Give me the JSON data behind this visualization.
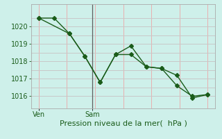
{
  "line1_x": [
    0,
    1,
    2,
    3,
    4,
    5,
    6,
    7,
    8,
    9,
    10,
    11
  ],
  "line1_y": [
    1020.5,
    1020.5,
    1019.6,
    1018.3,
    1016.8,
    1018.4,
    1018.9,
    1017.7,
    1017.6,
    1017.2,
    1015.9,
    1016.1
  ],
  "line2_x": [
    0,
    2,
    3,
    4,
    5,
    6,
    7,
    8,
    9,
    10,
    11
  ],
  "line2_y": [
    1020.5,
    1019.6,
    1018.3,
    1016.8,
    1018.4,
    1018.4,
    1017.7,
    1017.6,
    1016.6,
    1016.0,
    1016.1
  ],
  "bg_color": "#cef0ea",
  "grid_color_v": "#e8b0b0",
  "grid_color_h": "#c8c8c8",
  "line_color": "#1a5c1a",
  "marker": "D",
  "marker_size": 3,
  "ylabel_ticks": [
    1016,
    1017,
    1018,
    1019,
    1020
  ],
  "ylim": [
    1015.3,
    1021.3
  ],
  "xlim": [
    -0.5,
    11.5
  ],
  "xtick_labels": [
    "Ven",
    "Sam"
  ],
  "xtick_positions": [
    0,
    3.5
  ],
  "xlabel": "Pression niveau de la mer(  hPa )",
  "vline_x": 3.5,
  "tick_fontsize": 7,
  "xlabel_fontsize": 8,
  "n_vgrid": 6,
  "n_hgrid": 5
}
